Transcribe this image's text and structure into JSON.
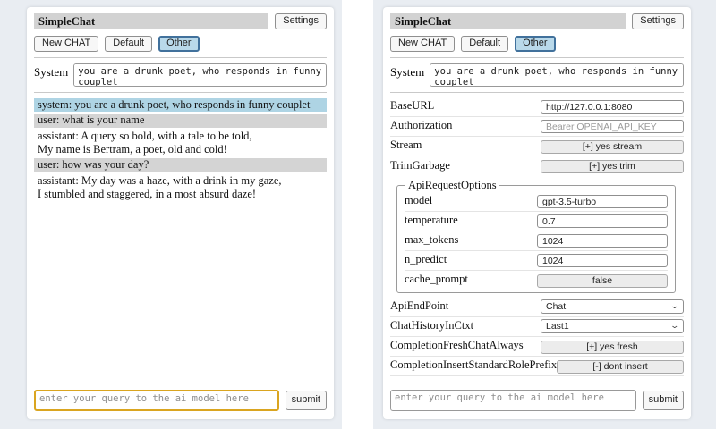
{
  "header": {
    "title": "SimpleChat",
    "settings_button_label": "Settings",
    "session_buttons": [
      {
        "label": "New CHAT",
        "active": false
      },
      {
        "label": "Default",
        "active": false
      },
      {
        "label": "Other",
        "active": true
      }
    ]
  },
  "system_prompt": {
    "label": "System",
    "value": "you are a drunk poet, who responds in funny couplet"
  },
  "chat_panel": {
    "messages": [
      {
        "role": "system",
        "text": "system: you are a drunk poet, who responds in funny couplet"
      },
      {
        "role": "user",
        "text": "user: what is your name"
      },
      {
        "role": "assistant",
        "text": "assistant: A query so bold, with a tale to be told,\nMy name is Bertram, a poet, old and cold!"
      },
      {
        "role": "user",
        "text": "user: how was your day?"
      },
      {
        "role": "assistant",
        "text": "assistant: My day was a haze, with a drink in my gaze,\nI stumbled and staggered, in a most absurd daze!"
      }
    ],
    "query": {
      "placeholder": "enter your query to the ai model here",
      "submit_label": "submit"
    }
  },
  "settings_panel": {
    "base_url_label": "BaseURL",
    "base_url_value": "http://127.0.0.1:8080",
    "authorization_label": "Authorization",
    "authorization_placeholder": "Bearer OPENAI_API_KEY",
    "stream_label": "Stream",
    "stream_button": "[+] yes stream",
    "trim_garbage_label": "TrimGarbage",
    "trim_garbage_button": "[+] yes trim",
    "api_request_options": {
      "legend": "ApiRequestOptions",
      "model_label": "model",
      "model_value": "gpt-3.5-turbo",
      "temperature_label": "temperature",
      "temperature_value": "0.7",
      "max_tokens_label": "max_tokens",
      "max_tokens_value": "1024",
      "n_predict_label": "n_predict",
      "n_predict_value": "1024",
      "cache_prompt_label": "cache_prompt",
      "cache_prompt_button": "false"
    },
    "api_endpoint_label": "ApiEndPoint",
    "api_endpoint_value": "Chat",
    "chat_history_label": "ChatHistoryInCtxt",
    "chat_history_value": "Last1",
    "fresh_chat_label": "CompletionFreshChatAlways",
    "fresh_chat_button": "[+] yes fresh",
    "role_prefix_label": "CompletionInsertStandardRolePrefix",
    "role_prefix_button": "[-] dont insert",
    "query": {
      "placeholder": "enter your query to the ai model here",
      "submit_label": "submit"
    }
  },
  "colors": {
    "page_background": "#e9edf2",
    "titlebar_background": "#d2d2d2",
    "active_session_background": "#b9d9ea",
    "active_session_border": "#41719c",
    "system_message_background": "#aed4e4",
    "user_message_background": "#d4d4d4",
    "query_focus_border": "#daa520"
  }
}
